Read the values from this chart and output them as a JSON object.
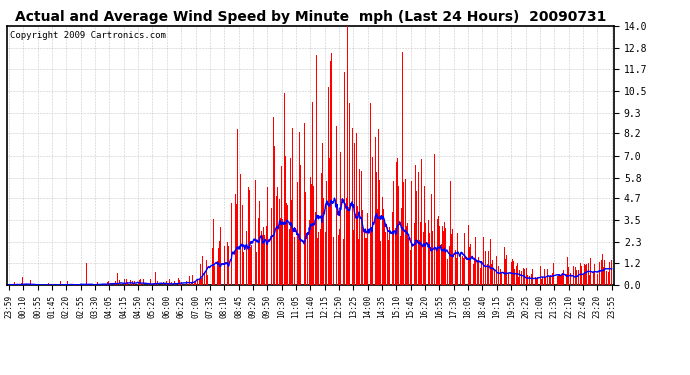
{
  "title": "Actual and Average Wind Speed by Minute  mph (Last 24 Hours)  20090731",
  "copyright": "Copyright 2009 Cartronics.com",
  "yticks": [
    0.0,
    1.2,
    2.3,
    3.5,
    4.7,
    5.8,
    7.0,
    8.2,
    9.3,
    10.5,
    11.7,
    12.8,
    14.0
  ],
  "ylim": [
    0.0,
    14.0
  ],
  "bar_color": "#ff0000",
  "line_color": "#0000ff",
  "background_color": "#ffffff",
  "grid_color": "#bbbbbb",
  "title_fontsize": 10,
  "copyright_fontsize": 6.5,
  "tick_label_fontsize": 5.5,
  "ytick_fontsize": 7,
  "x_labels": [
    "23:59",
    "00:10",
    "00:55",
    "01:45",
    "02:20",
    "02:55",
    "03:30",
    "04:05",
    "04:15",
    "04:50",
    "05:25",
    "06:00",
    "06:25",
    "07:00",
    "07:35",
    "08:10",
    "08:45",
    "09:20",
    "09:50",
    "10:30",
    "11:05",
    "11:40",
    "12:15",
    "12:50",
    "13:25",
    "14:00",
    "14:35",
    "15:10",
    "15:45",
    "16:20",
    "16:55",
    "17:30",
    "18:05",
    "18:40",
    "19:15",
    "19:50",
    "20:25",
    "21:00",
    "21:35",
    "22:10",
    "22:45",
    "23:20",
    "23:55"
  ]
}
